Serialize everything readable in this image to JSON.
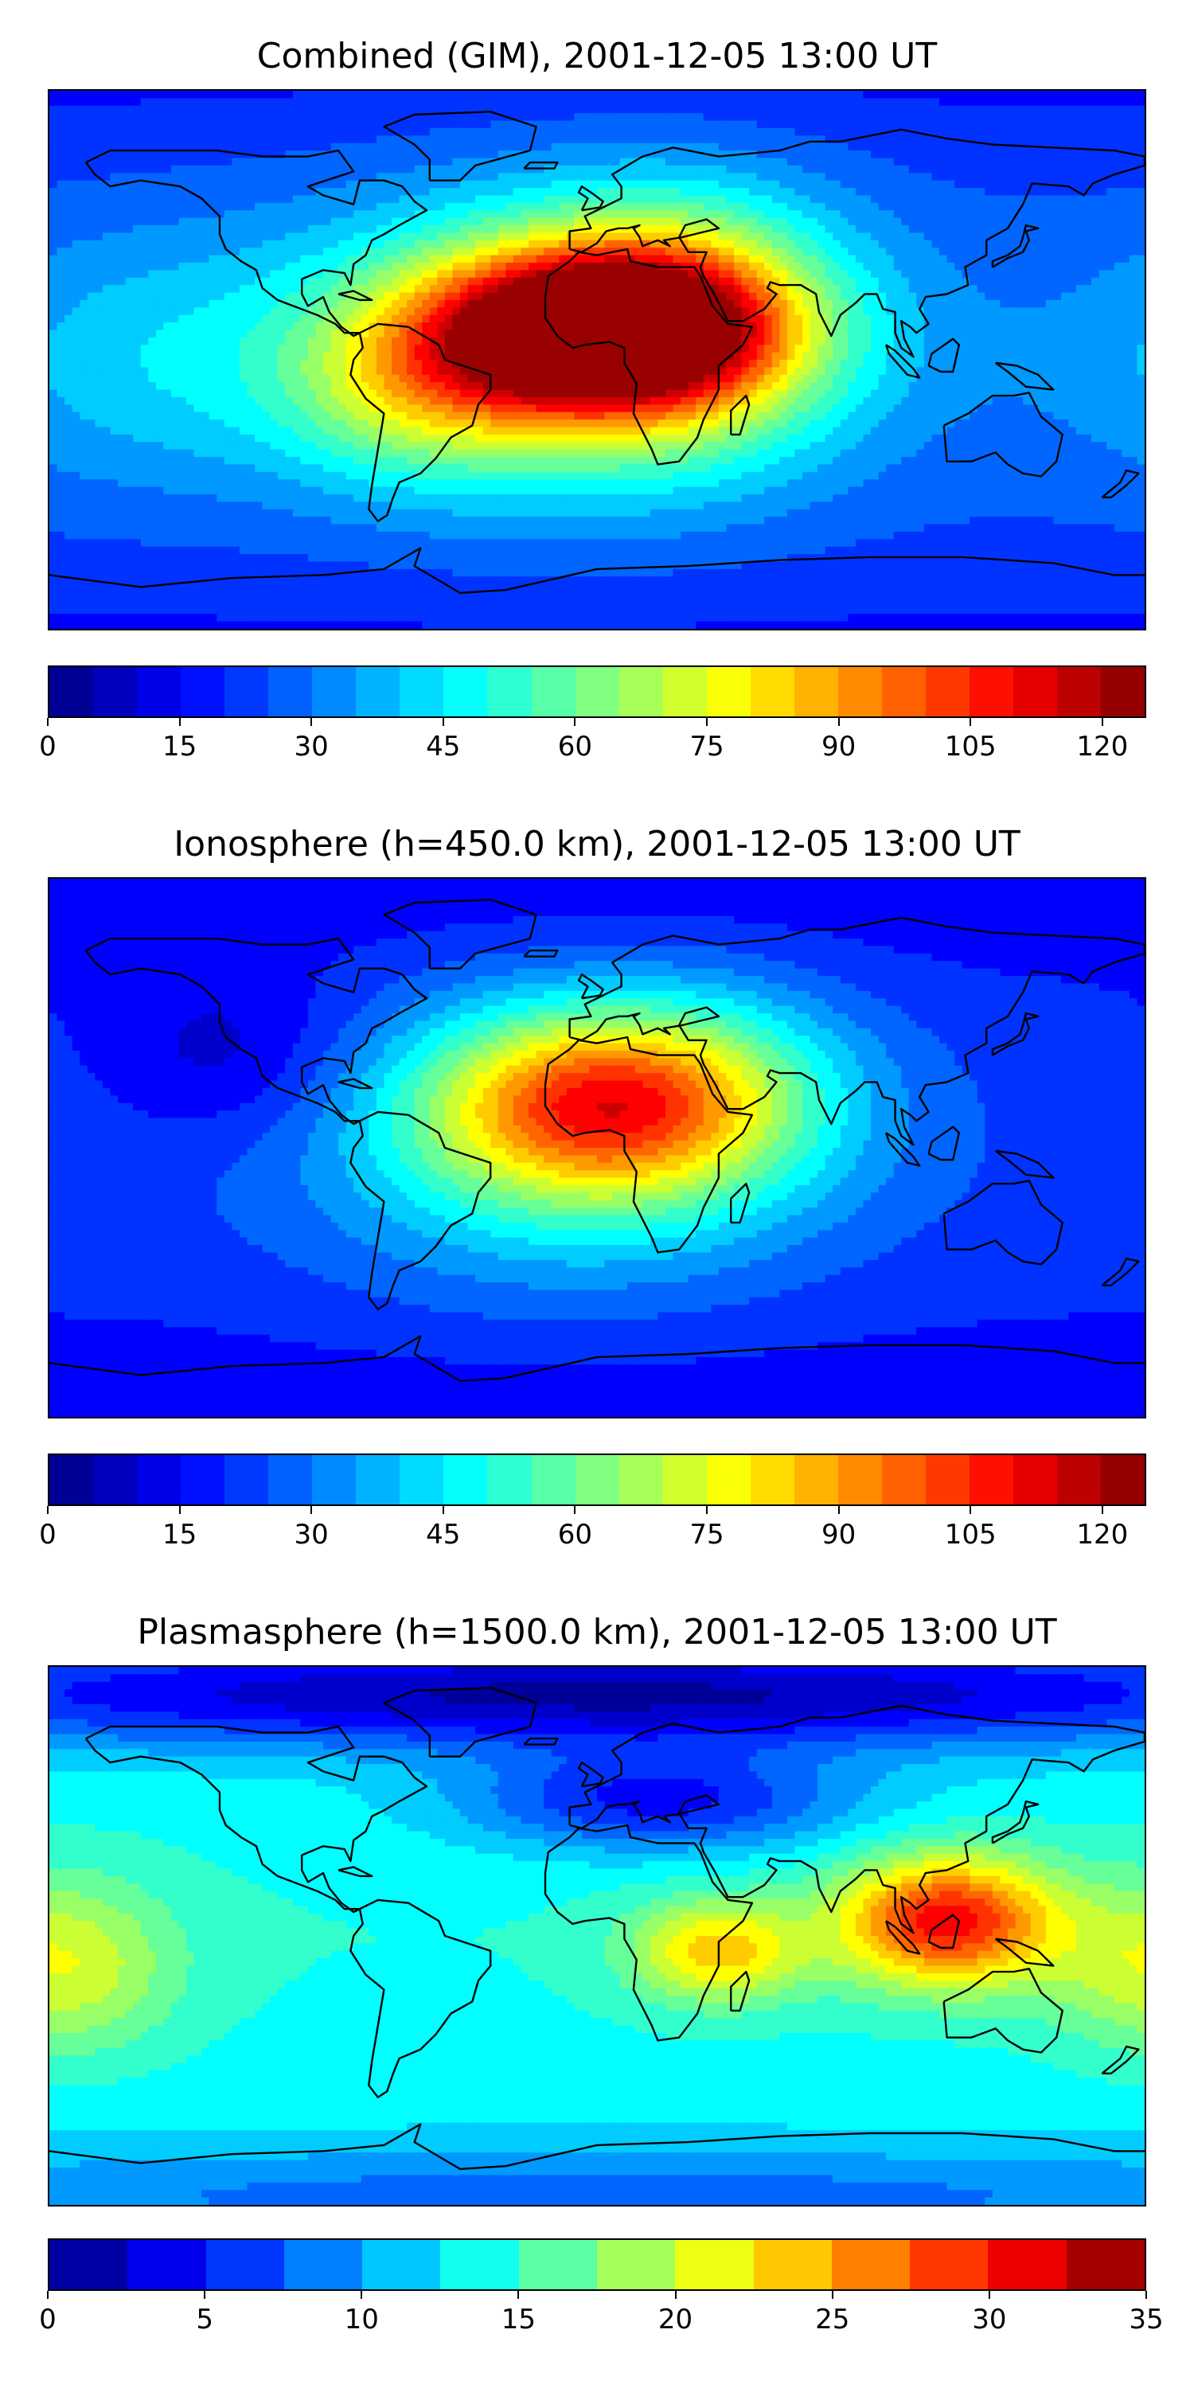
{
  "panels": [
    {
      "title": "Combined (GIM), 2001-12-05 13:00 UT",
      "colorbar": {
        "min": 0,
        "max": 125,
        "levels": 25,
        "tick_labels": [
          "0",
          "15",
          "30",
          "45",
          "60",
          "75",
          "90",
          "105",
          "120"
        ],
        "tick_values": [
          0,
          15,
          30,
          45,
          60,
          75,
          90,
          105,
          120
        ]
      },
      "field": {
        "background_level": 0.22,
        "blobs": [
          {
            "lon": 0,
            "lat": 10,
            "amp": 0.72,
            "slon": 38,
            "slat": 18
          },
          {
            "lon": -15,
            "lat": 5,
            "amp": 0.35,
            "slon": 60,
            "slat": 35
          },
          {
            "lon": 30,
            "lat": 15,
            "amp": 0.25,
            "slon": 35,
            "slat": 30
          },
          {
            "lon": -60,
            "lat": -10,
            "amp": 0.18,
            "slon": 30,
            "slat": 20
          },
          {
            "lon": -150,
            "lat": 0,
            "amp": 0.1,
            "slon": 40,
            "slat": 30
          }
        ]
      }
    },
    {
      "title": "Ionosphere  (h=450.0 km), 2001-12-05 13:00 UT",
      "colorbar": {
        "min": 0,
        "max": 125,
        "levels": 25,
        "tick_labels": [
          "0",
          "15",
          "30",
          "45",
          "60",
          "75",
          "90",
          "105",
          "120"
        ],
        "tick_values": [
          0,
          15,
          30,
          45,
          60,
          75,
          90,
          105,
          120
        ]
      },
      "field": {
        "background_level": 0.18,
        "blobs": [
          {
            "lon": 0,
            "lat": 15,
            "amp": 0.48,
            "slon": 40,
            "slat": 22
          },
          {
            "lon": -10,
            "lat": 0,
            "amp": 0.2,
            "slon": 60,
            "slat": 35
          },
          {
            "lon": 40,
            "lat": 20,
            "amp": 0.12,
            "slon": 35,
            "slat": 25
          },
          {
            "lon": -120,
            "lat": 30,
            "amp": -0.1,
            "slon": 30,
            "slat": 20
          }
        ]
      }
    },
    {
      "title": "Plasmasphere (h=1500.0 km), 2001-12-05 13:00 UT",
      "colorbar": {
        "min": 0,
        "max": 35,
        "levels": 14,
        "tick_labels": [
          "0",
          "5",
          "10",
          "15",
          "20",
          "25",
          "30",
          "35"
        ],
        "tick_values": [
          0,
          5,
          10,
          15,
          20,
          25,
          30,
          35
        ]
      },
      "field": {
        "background_level": 0.4,
        "blobs": [
          {
            "lon": 115,
            "lat": 5,
            "amp": 0.48,
            "slon": 25,
            "slat": 15
          },
          {
            "lon": 40,
            "lat": -5,
            "amp": 0.28,
            "slon": 20,
            "slat": 12
          },
          {
            "lon": -175,
            "lat": -10,
            "amp": 0.2,
            "slon": 25,
            "slat": 20
          },
          {
            "lon": 20,
            "lat": 45,
            "amp": -0.25,
            "slon": 45,
            "slat": 12
          },
          {
            "lon": 0,
            "lat": 80,
            "amp": -0.3,
            "slon": 180,
            "slat": 12
          },
          {
            "lon": 0,
            "lat": -85,
            "amp": -0.1,
            "slon": 180,
            "slat": 10
          }
        ]
      }
    }
  ],
  "colormap": "jet",
  "coastline_color": "#000000"
}
